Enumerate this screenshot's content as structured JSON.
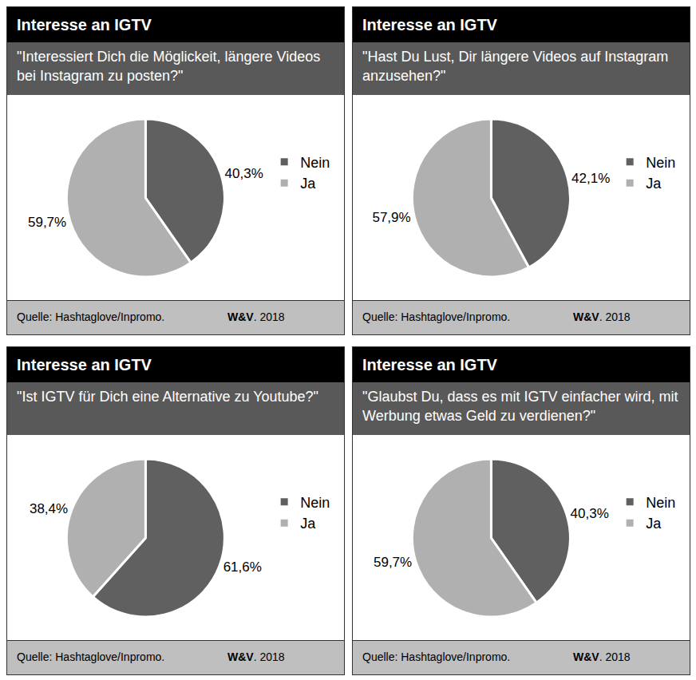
{
  "chart_data": [
    {
      "type": "pie",
      "title": "Interesse an IGTV",
      "subtitle": "\"Interessiert Dich die Möglickeit, längere Videos bei Instagram zu posten?\"",
      "categories": [
        "Nein",
        "Ja"
      ],
      "values": [
        40.3,
        59.7
      ],
      "value_labels": [
        "40,3%",
        "59,7%"
      ],
      "colors": [
        "#606060",
        "#b0b0b0"
      ],
      "data_labels": true,
      "source": "Quelle: Hashtaglove/Inpromo.",
      "credit_bold": "W&V",
      "credit_rest": ". 2018"
    },
    {
      "type": "pie",
      "title": "Interesse an IGTV",
      "subtitle": "\"Hast Du Lust, Dir längere Videos auf Instagram anzusehen?\"",
      "categories": [
        "Nein",
        "Ja"
      ],
      "values": [
        42.1,
        57.9
      ],
      "value_labels": [
        "42,1%",
        "57,9%"
      ],
      "colors": [
        "#606060",
        "#b0b0b0"
      ],
      "data_labels": true,
      "source": "Quelle: Hashtaglove/Inpromo.",
      "credit_bold": "W&V",
      "credit_rest": ". 2018"
    },
    {
      "type": "pie",
      "title": "Interesse an IGTV",
      "subtitle": "\"Ist IGTV für Dich eine Alternative zu Youtube?\"",
      "categories": [
        "Nein",
        "Ja"
      ],
      "values": [
        61.6,
        38.4
      ],
      "value_labels": [
        "61,6%",
        "38,4%"
      ],
      "colors": [
        "#606060",
        "#b0b0b0"
      ],
      "data_labels": true,
      "source": "Quelle: Hashtaglove/Inpromo.",
      "credit_bold": "W&V",
      "credit_rest": ". 2018"
    },
    {
      "type": "pie",
      "title": "Interesse an IGTV",
      "subtitle": "\"Glaubst Du, dass es mit IGTV einfacher wird, mit Werbung etwas Geld zu verdienen?\"",
      "categories": [
        "Nein",
        "Ja"
      ],
      "values": [
        40.3,
        59.7
      ],
      "value_labels": [
        "40,3%",
        "59,7%"
      ],
      "colors": [
        "#606060",
        "#b0b0b0"
      ],
      "data_labels": true,
      "source": "Quelle: Hashtaglove/Inpromo.",
      "credit_bold": "W&V",
      "credit_rest": ". 2018"
    }
  ]
}
